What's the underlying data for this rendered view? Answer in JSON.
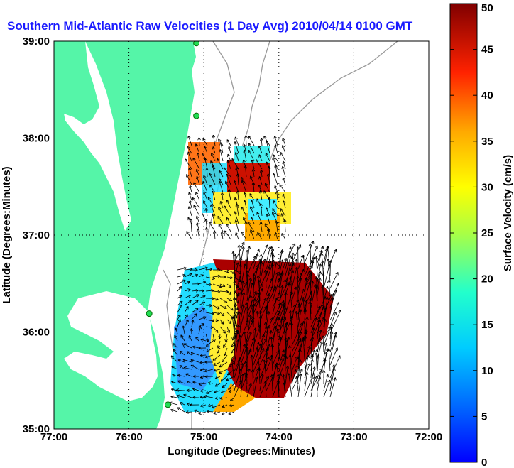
{
  "title": "Southern Mid-Atlantic Raw Velocities (1 Day Avg) 2010/04/14 0100 GMT",
  "x_axis": {
    "label": "Longitude (Degrees:Minutes)",
    "ticks": [
      "77:00",
      "76:00",
      "75:00",
      "74:00",
      "73:00",
      "72:00"
    ]
  },
  "y_axis": {
    "label": "Latitude (Degrees:Minutes)",
    "ticks": [
      "39:00",
      "38:00",
      "37:00",
      "36:00",
      "35:00"
    ]
  },
  "colorbar": {
    "label": "Surface Velocity (cm/s)",
    "ticks": [
      "50",
      "45",
      "40",
      "35",
      "30",
      "25",
      "20",
      "15",
      "10",
      "5",
      "0"
    ],
    "range": [
      0,
      50
    ]
  },
  "map": {
    "lon_range": [
      -77,
      -72
    ],
    "lat_range": [
      35,
      39
    ],
    "grid": "dotted",
    "land_color": "#55f5a8",
    "sites": [
      {
        "name": "site-north",
        "lon": -75.1,
        "lat": 38.98
      },
      {
        "name": "site-delmarva",
        "lon": -75.1,
        "lat": 38.23
      },
      {
        "name": "site-outer-banks-north",
        "lon": -75.73,
        "lat": 36.19
      },
      {
        "name": "site-outer-banks-south",
        "lon": -75.48,
        "lat": 35.25
      }
    ]
  }
}
